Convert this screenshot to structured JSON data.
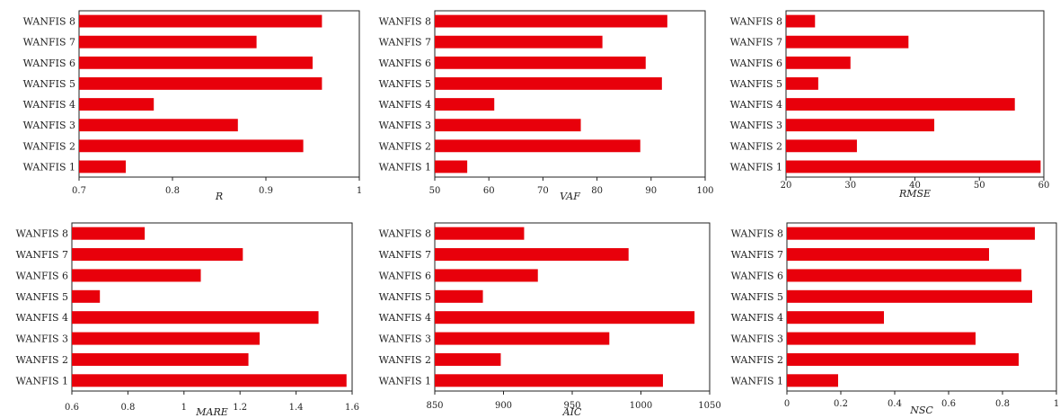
{
  "colors": {
    "bar": "#e8000b",
    "frame": "#222222",
    "background": "#ffffff"
  },
  "chart_data": [
    {
      "type": "bar",
      "orientation": "horizontal",
      "categories": [
        "WANFIS 1",
        "WANFIS 2",
        "WANFIS 3",
        "WANFIS 4",
        "WANFIS 5",
        "WANFIS 6",
        "WANFIS 7",
        "WANFIS 8"
      ],
      "values": [
        0.75,
        0.94,
        0.87,
        0.78,
        0.96,
        0.95,
        0.89,
        0.96
      ],
      "xlabel": "R",
      "xlim": [
        0.7,
        1
      ],
      "ticks": [
        0.7,
        0.8,
        0.9,
        1
      ],
      "tick_labels": [
        "0.7",
        "0.8",
        "0.9",
        "1"
      ],
      "grid": false
    },
    {
      "type": "bar",
      "orientation": "horizontal",
      "categories": [
        "WANFIS 1",
        "WANFIS 2",
        "WANFIS 3",
        "WANFIS 4",
        "WANFIS 5",
        "WANFIS 6",
        "WANFIS 7",
        "WANFIS 8"
      ],
      "values": [
        56,
        88,
        77,
        61,
        92,
        89,
        81,
        93
      ],
      "xlabel": "VAF",
      "xlim": [
        50,
        100
      ],
      "ticks": [
        50,
        60,
        70,
        80,
        90,
        100
      ],
      "tick_labels": [
        "50",
        "60",
        "70",
        "80",
        "90",
        "100"
      ],
      "grid": false
    },
    {
      "type": "bar",
      "orientation": "horizontal",
      "categories": [
        "WANFIS 1",
        "WANFIS 2",
        "WANFIS 3",
        "WANFIS 4",
        "WANFIS 5",
        "WANFIS 6",
        "WANFIS 7",
        "WANFIS 8"
      ],
      "values": [
        59.5,
        31,
        43,
        55.5,
        25,
        30,
        39,
        24.5
      ],
      "xlabel": "RMSE",
      "xlim": [
        20,
        60
      ],
      "ticks": [
        20,
        30,
        40,
        50,
        60
      ],
      "tick_labels": [
        "20",
        "30",
        "40",
        "50",
        "60"
      ],
      "grid": false
    },
    {
      "type": "bar",
      "orientation": "horizontal",
      "categories": [
        "WANFIS 1",
        "WANFIS 2",
        "WANFIS 3",
        "WANFIS 4",
        "WANFIS 5",
        "WANFIS 6",
        "WANFIS 7",
        "WANFIS 8"
      ],
      "values": [
        1.58,
        1.23,
        1.27,
        1.48,
        0.7,
        1.06,
        1.21,
        0.86
      ],
      "xlabel": "MARE",
      "xlim": [
        0.6,
        1.6
      ],
      "ticks": [
        0.6,
        0.8,
        1.0,
        1.2,
        1.4,
        1.6
      ],
      "tick_labels": [
        "0.6",
        "0.8",
        "1",
        "1.2",
        "1.4",
        "1.6"
      ],
      "grid": false
    },
    {
      "type": "bar",
      "orientation": "horizontal",
      "categories": [
        "WANFIS 1",
        "WANFIS 2",
        "WANFIS 3",
        "WANFIS 4",
        "WANFIS 5",
        "WANFIS 6",
        "WANFIS 7",
        "WANFIS 8"
      ],
      "values": [
        1016,
        898,
        977,
        1039,
        885,
        925,
        991,
        915
      ],
      "xlabel": "AIC",
      "xlim": [
        850,
        1050
      ],
      "ticks": [
        850,
        900,
        950,
        1000,
        1050
      ],
      "tick_labels": [
        "850",
        "900",
        "950",
        "1000",
        "1050"
      ],
      "grid": false
    },
    {
      "type": "bar",
      "orientation": "horizontal",
      "categories": [
        "WANFIS 1",
        "WANFIS 2",
        "WANFIS 3",
        "WANFIS 4",
        "WANFIS 5",
        "WANFIS 6",
        "WANFIS 7",
        "WANFIS 8"
      ],
      "values": [
        0.19,
        0.86,
        0.7,
        0.36,
        0.91,
        0.87,
        0.75,
        0.92
      ],
      "xlabel": "NSC",
      "xlim": [
        0,
        1
      ],
      "ticks": [
        0,
        0.2,
        0.4,
        0.6,
        0.8,
        1
      ],
      "tick_labels": [
        "0",
        "0.2",
        "0.4",
        "0.6",
        "0.8",
        "1"
      ],
      "grid": false
    }
  ]
}
